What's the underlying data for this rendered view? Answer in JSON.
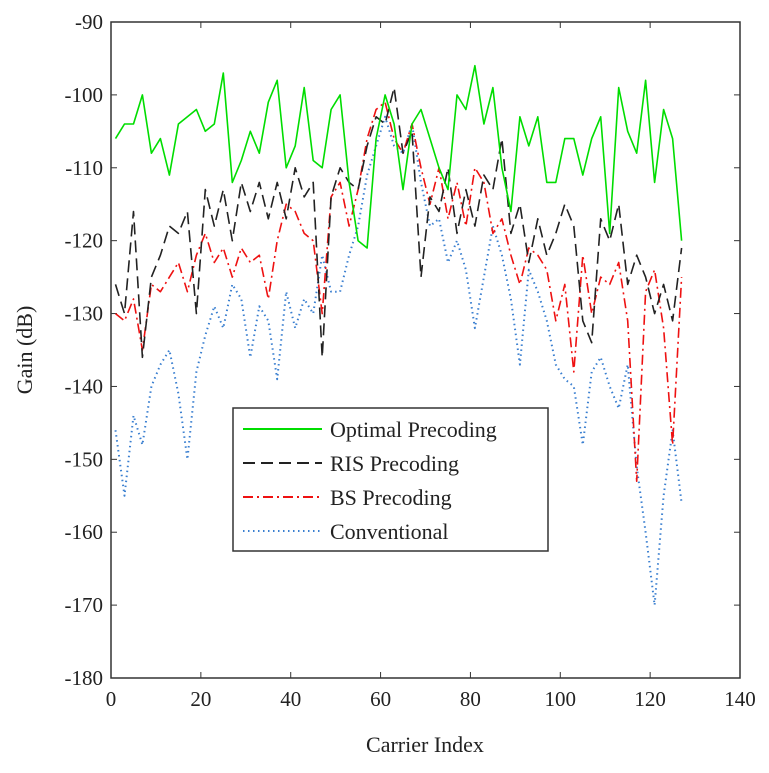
{
  "chart_data": {
    "type": "line",
    "xlabel": "Carrier Index",
    "ylabel": "Gain (dB)",
    "xlim": [
      0,
      140
    ],
    "ylim": [
      -180,
      -90
    ],
    "xticks": [
      0,
      20,
      40,
      60,
      80,
      100,
      120,
      140
    ],
    "yticks": [
      -90,
      -100,
      -110,
      -120,
      -130,
      -140,
      -150,
      -160,
      -170,
      -180
    ],
    "grid": false,
    "legend_placement": "lower-center",
    "x": [
      1,
      3,
      5,
      7,
      9,
      11,
      13,
      15,
      17,
      19,
      21,
      23,
      25,
      27,
      29,
      31,
      33,
      35,
      37,
      39,
      41,
      43,
      45,
      47,
      49,
      51,
      53,
      55,
      57,
      59,
      61,
      63,
      65,
      67,
      69,
      71,
      73,
      75,
      77,
      79,
      81,
      83,
      85,
      87,
      89,
      91,
      93,
      95,
      97,
      99,
      101,
      103,
      105,
      107,
      109,
      111,
      113,
      115,
      117,
      119,
      121,
      123,
      125,
      127
    ],
    "series": [
      {
        "name": "Optimal Precoding",
        "color": "#00dd00",
        "style": "solid",
        "values": [
          -106,
          -104,
          -104,
          -100,
          -108,
          -106,
          -111,
          -104,
          -103,
          -102,
          -105,
          -104,
          -97,
          -112,
          -109,
          -105,
          -108,
          -101,
          -98,
          -110,
          -107,
          -99,
          -109,
          -110,
          -102,
          -100,
          -112,
          -120,
          -121,
          -106,
          -100,
          -104,
          -113,
          -104,
          -102,
          -106,
          -110,
          -113,
          -100,
          -102,
          -96,
          -104,
          -99,
          -110,
          -116,
          -103,
          -107,
          -103,
          -112,
          -112,
          -106,
          -106,
          -111,
          -106,
          -103,
          -119,
          -99,
          -105,
          -108,
          -98,
          -112,
          -102,
          -106,
          -120
        ]
      },
      {
        "name": "RIS Precoding",
        "color": "#222222",
        "style": "dashed",
        "values": [
          -126,
          -130,
          -116,
          -136,
          -125,
          -122,
          -118,
          -119,
          -116,
          -130,
          -113,
          -118,
          -113,
          -120,
          -112,
          -116,
          -112,
          -117,
          -112,
          -117,
          -110,
          -114,
          -112,
          -136,
          -114,
          -110,
          -112,
          -113,
          -107,
          -103,
          -104,
          -99,
          -108,
          -105,
          -125,
          -114,
          -116,
          -110,
          -119,
          -113,
          -118,
          -111,
          -113,
          -106,
          -119,
          -115,
          -123,
          -117,
          -122,
          -119,
          -115,
          -118,
          -131,
          -134,
          -117,
          -120,
          -115,
          -126,
          -122,
          -125,
          -130,
          -126,
          -131,
          -121
        ]
      },
      {
        "name": "BS Precoding",
        "color": "#ee1111",
        "style": "dashdot",
        "values": [
          -130,
          -131,
          -128,
          -135,
          -126,
          -127,
          -125,
          -123,
          -127,
          -122,
          -119,
          -123,
          -121,
          -125,
          -121,
          -123,
          -122,
          -128,
          -120,
          -115,
          -116,
          -119,
          -120,
          -130,
          -114,
          -112,
          -118,
          -113,
          -106,
          -102,
          -101,
          -106,
          -108,
          -104,
          -110,
          -115,
          -110,
          -117,
          -112,
          -118,
          -110,
          -112,
          -119,
          -117,
          -122,
          -126,
          -121,
          -122,
          -124,
          -131,
          -126,
          -138,
          -122,
          -130,
          -125,
          -126,
          -123,
          -131,
          -153,
          -127,
          -124,
          -132,
          -148,
          -125
        ]
      },
      {
        "name": "Conventional",
        "color": "#3a7fd0",
        "style": "dotted",
        "values": [
          -146,
          -155,
          -144,
          -148,
          -140,
          -137,
          -135,
          -141,
          -150,
          -138,
          -133,
          -129,
          -132,
          -126,
          -128,
          -136,
          -129,
          -131,
          -139,
          -127,
          -132,
          -128,
          -130,
          -122,
          -127,
          -127,
          -122,
          -118,
          -111,
          -107,
          -103,
          -107,
          -108,
          -104,
          -112,
          -118,
          -117,
          -123,
          -120,
          -124,
          -132,
          -125,
          -118,
          -122,
          -128,
          -137,
          -124,
          -127,
          -131,
          -137,
          -139,
          -140,
          -148,
          -138,
          -136,
          -140,
          -143,
          -137,
          -151,
          -160,
          -170,
          -155,
          -146,
          -156
        ]
      }
    ]
  }
}
